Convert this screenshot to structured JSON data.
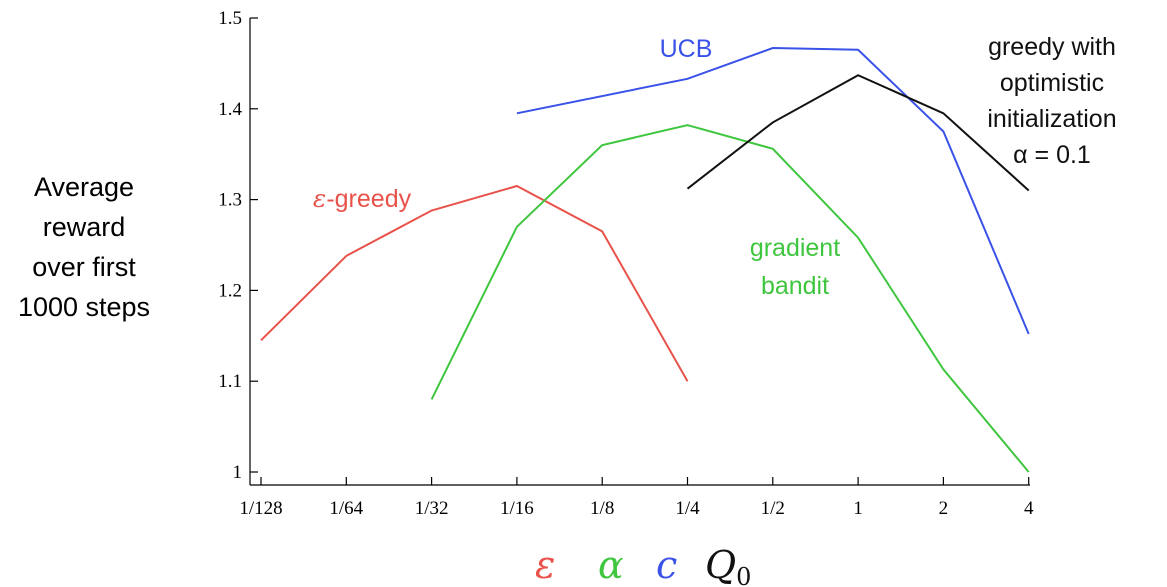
{
  "chart_data": {
    "type": "line",
    "x_ticks": [
      "1/128",
      "1/64",
      "1/32",
      "1/16",
      "1/8",
      "1/4",
      "1/2",
      "1",
      "2",
      "4"
    ],
    "y_ticks": [
      "1",
      "1.1",
      "1.2",
      "1.3",
      "1.4",
      "1.5"
    ],
    "ylim": [
      1.0,
      1.5
    ],
    "ylabel": [
      "Average",
      "reward",
      "over first",
      "1000 steps"
    ],
    "x_param_symbols": [
      {
        "symbol": "ε",
        "color": "#e8524a"
      },
      {
        "symbol": "α",
        "color": "#3fc63f"
      },
      {
        "symbol": "c",
        "color": "#3a52e8"
      },
      {
        "symbol": "Q",
        "subscript": "0",
        "color": "#111111"
      }
    ],
    "series": [
      {
        "name": "ε-greedy",
        "label_lines": [
          "ε-greedy"
        ],
        "color": "#e8524a",
        "x": [
          "1/128",
          "1/64",
          "1/32",
          "1/16",
          "1/8",
          "1/4"
        ],
        "y": [
          1.145,
          1.238,
          1.288,
          1.315,
          1.265,
          1.1
        ]
      },
      {
        "name": "gradient bandit",
        "label_lines": [
          "gradient",
          "bandit"
        ],
        "color": "#3fc63f",
        "x": [
          "1/32",
          "1/16",
          "1/8",
          "1/4",
          "1/2",
          "1",
          "2",
          "4"
        ],
        "y": [
          1.08,
          1.27,
          1.36,
          1.382,
          1.356,
          1.258,
          1.113,
          1.0
        ]
      },
      {
        "name": "UCB",
        "label_lines": [
          "UCB"
        ],
        "color": "#3a52e8",
        "x": [
          "1/16",
          "1/4",
          "1/2",
          "1",
          "2",
          "4"
        ],
        "y": [
          1.395,
          1.433,
          1.467,
          1.465,
          1.375,
          1.152
        ]
      },
      {
        "name": "greedy with optimistic initialization α = 0.1",
        "label_lines": [
          "greedy with",
          "optimistic",
          "initialization",
          "α = 0.1"
        ],
        "color": "#111111",
        "x": [
          "1/4",
          "1/2",
          "1",
          "2",
          "4"
        ],
        "y": [
          1.312,
          1.385,
          1.437,
          1.395,
          1.31
        ]
      }
    ]
  }
}
